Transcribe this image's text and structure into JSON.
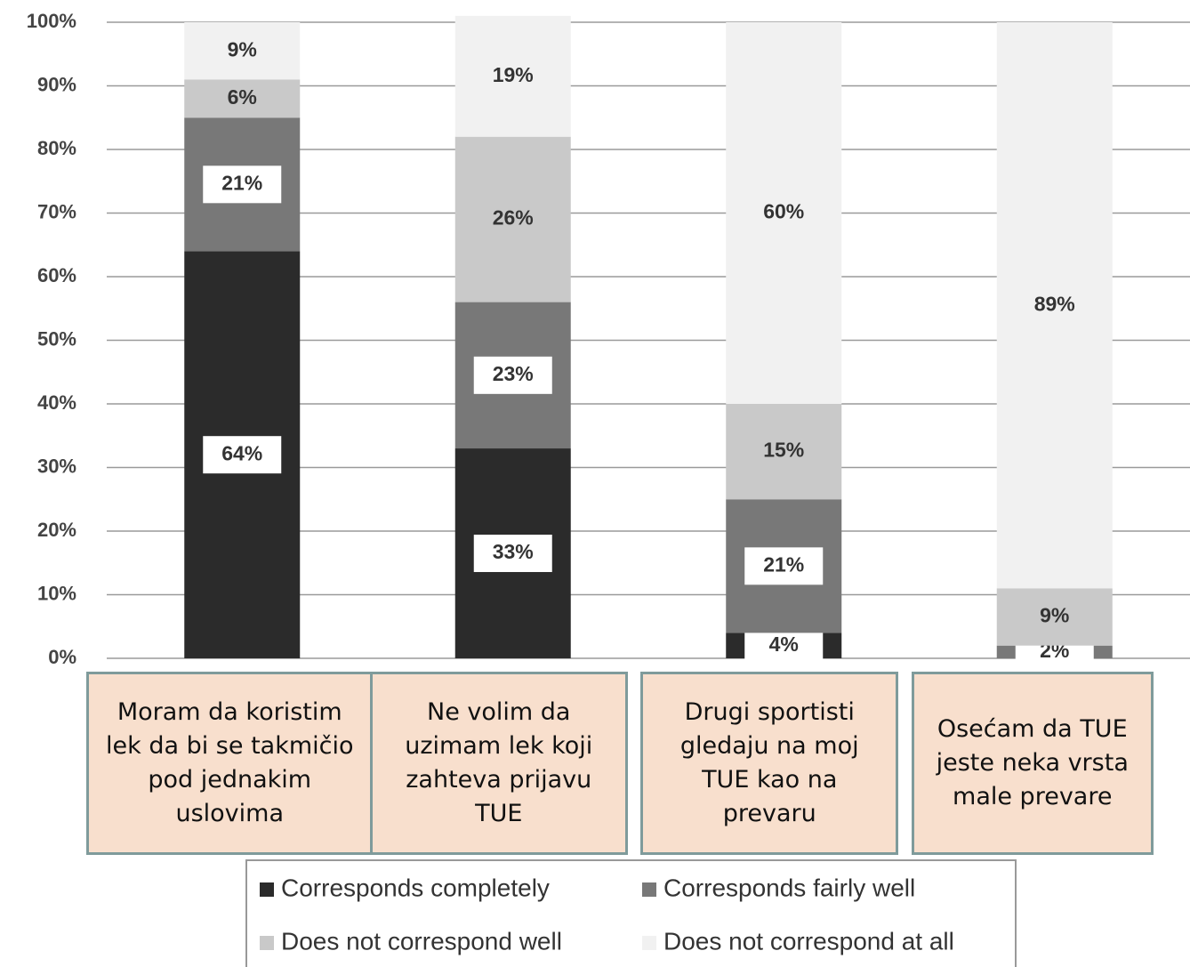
{
  "chart_data": {
    "type": "stacked_bar",
    "categories": [
      "Moram da koristim lek da bi se takmičio pod jednakim uslovima",
      "Ne volim da uzimam lek koji zahteva prijavu TUE",
      "Drugi sportisti gledaju na moj TUE kao na prevaru",
      "Osećam da TUE jeste neka vrsta male prevare"
    ],
    "series": [
      {
        "name": "Corresponds completely",
        "color": "#2b2b2b",
        "values": [
          64,
          33,
          4,
          null
        ],
        "value_labels": [
          "64%",
          "33%",
          "4%",
          null
        ]
      },
      {
        "name": "Corresponds fairly well",
        "color": "#787878",
        "values": [
          21,
          23,
          21,
          2
        ],
        "value_labels": [
          "21%",
          "23%",
          "21%",
          "2%"
        ]
      },
      {
        "name": "Does not correspond well",
        "color": "#c9c9c9",
        "values": [
          6,
          26,
          15,
          9
        ],
        "value_labels": [
          "6%",
          "26%",
          "15%",
          "9%"
        ]
      },
      {
        "name": "Does not correspond at all",
        "color": "#f1f1f1",
        "values": [
          9,
          19,
          60,
          89
        ],
        "value_labels": [
          "9%",
          "19%",
          "60%",
          "89%"
        ]
      }
    ],
    "ylim": [
      0,
      100
    ],
    "yticks": [
      {
        "value": 0,
        "label": "0%"
      },
      {
        "value": 10,
        "label": "10%"
      },
      {
        "value": 20,
        "label": "20%"
      },
      {
        "value": 30,
        "label": "30%"
      },
      {
        "value": 40,
        "label": "40%"
      },
      {
        "value": 50,
        "label": "50%"
      },
      {
        "value": 60,
        "label": "60%"
      },
      {
        "value": 70,
        "label": "70%"
      },
      {
        "value": 80,
        "label": "80%"
      },
      {
        "value": 90,
        "label": "90%"
      },
      {
        "value": 100,
        "label": "100%"
      }
    ],
    "grid": true
  }
}
